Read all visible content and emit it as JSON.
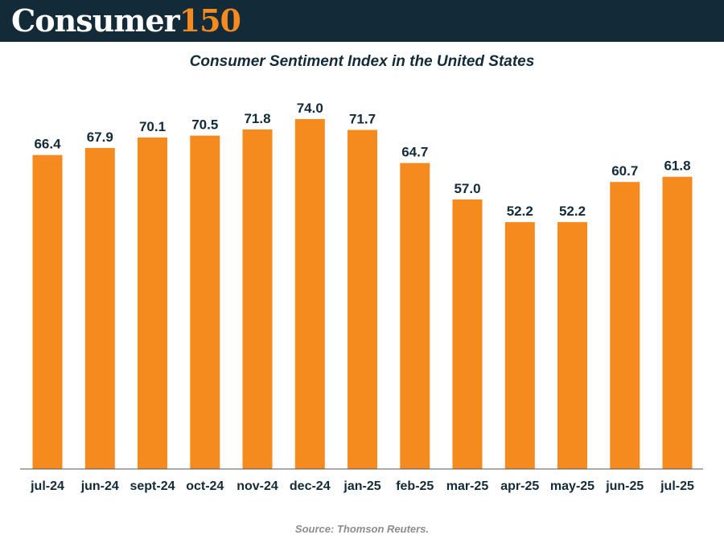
{
  "header": {
    "logo_word": "Consumer",
    "logo_number": "150",
    "background": "#132a38",
    "accent": "#f58a1f"
  },
  "chart_data": {
    "type": "bar",
    "title": "Consumer Sentiment Index in the United States",
    "categories": [
      "jul-24",
      "jun-24",
      "sept-24",
      "oct-24",
      "nov-24",
      "dec-24",
      "jan-25",
      "feb-25",
      "mar-25",
      "apr-25",
      "may-25",
      "jun-25",
      "jul-25"
    ],
    "values": [
      66.4,
      67.9,
      70.1,
      70.5,
      71.8,
      74.0,
      71.7,
      64.7,
      57.0,
      52.2,
      52.2,
      60.7,
      61.8
    ],
    "value_labels": [
      "66.4",
      "67.9",
      "70.1",
      "70.5",
      "71.8",
      "74.0",
      "71.7",
      "64.7",
      "57.0",
      "52.2",
      "52.2",
      "60.7",
      "61.8"
    ],
    "xlabel": "",
    "ylabel": "",
    "ylim": [
      0,
      74
    ],
    "grid": false,
    "bar_color": "#f58a1f",
    "label_color": "#132a38"
  },
  "footer": {
    "source": "Source: Thomson Reuters."
  }
}
